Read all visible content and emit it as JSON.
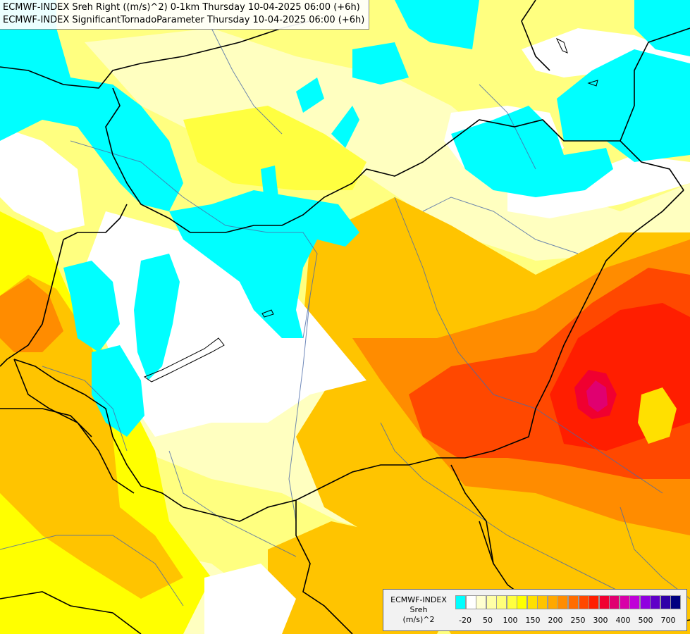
{
  "title": {
    "line1": "ECMWF-INDEX Sreh Right ((m/s)^2) 0-1km Thursday 10-04-2025 06:00 (+6h)",
    "line2": "ECMWF-INDEX SignificantTornadoParameter Thursday 10-04-2025 06:00 (+6h)"
  },
  "legend": {
    "source": "ECMWF-INDEX",
    "parameter": "Sreh",
    "unit": "(m/s)^2",
    "colors": [
      "#00ffff",
      "#ffffff",
      "#ffffd0",
      "#ffffa6",
      "#ffff7a",
      "#ffff40",
      "#ffff00",
      "#ffe000",
      "#ffc400",
      "#ffa800",
      "#ff8c00",
      "#ff6c00",
      "#ff4800",
      "#ff1e00",
      "#f00030",
      "#e00070",
      "#d800a8",
      "#c000d8",
      "#9000e0",
      "#6000c8",
      "#3000a8",
      "#000080"
    ],
    "ticks": [
      "-20",
      "50",
      "100",
      "150",
      "200",
      "250",
      "300",
      "400",
      "500",
      "700"
    ]
  }
}
